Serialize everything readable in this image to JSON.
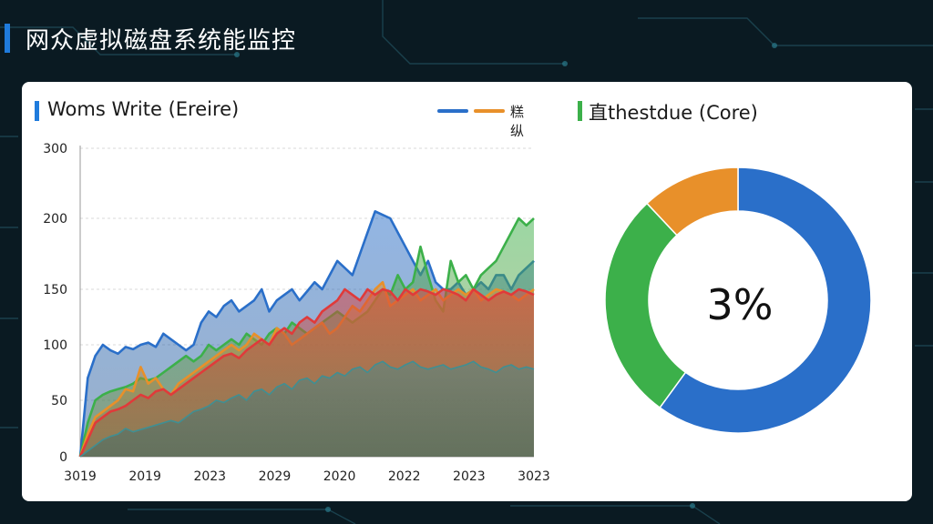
{
  "header": {
    "title": "网众虚拟磁盘系统能监控"
  },
  "panels": {
    "line": {
      "title": "Woms Write (Ereire)",
      "legend_label": "糕纵"
    },
    "donut": {
      "title": "直thestdue (Core)",
      "center_label": "3%"
    }
  },
  "colors": {
    "accent": "#1f7bdc",
    "blue": "#2a6fc9",
    "orange": "#e8902a",
    "green": "#3cb04a",
    "red": "#e03a3a",
    "teal": "#3f8f93"
  },
  "chart_data": [
    {
      "type": "area",
      "title": "Woms Write (Ereire)",
      "xlabel": "",
      "ylabel": "",
      "ylim": [
        0,
        300
      ],
      "yticks": [
        0,
        50,
        100,
        150,
        200,
        300
      ],
      "xticks": [
        "3019",
        "2019",
        "2023",
        "2029",
        "2020",
        "2022",
        "2023",
        "3023"
      ],
      "grid": true,
      "legend_position": "top-right",
      "series": [
        {
          "color": "blue",
          "values": [
            0,
            70,
            90,
            100,
            95,
            92,
            98,
            96,
            100,
            102,
            98,
            110,
            105,
            100,
            95,
            100,
            120,
            130,
            125,
            135,
            140,
            130,
            135,
            140,
            150,
            130,
            140,
            145,
            150,
            140,
            148,
            155,
            150,
            160,
            170,
            165,
            160,
            175,
            190,
            210,
            205,
            200,
            190,
            180,
            170,
            160,
            170,
            155,
            150,
            150,
            155,
            145,
            150,
            155,
            150,
            160,
            160,
            150,
            160,
            165,
            170
          ]
        },
        {
          "color": "green",
          "values": [
            0,
            30,
            50,
            55,
            58,
            60,
            62,
            65,
            70,
            68,
            70,
            75,
            80,
            85,
            90,
            85,
            90,
            100,
            95,
            100,
            105,
            100,
            110,
            105,
            100,
            110,
            115,
            110,
            120,
            115,
            110,
            115,
            120,
            125,
            130,
            125,
            120,
            125,
            130,
            140,
            150,
            145,
            160,
            150,
            155,
            180,
            160,
            140,
            130,
            170,
            155,
            160,
            150,
            160,
            165,
            170,
            180,
            190,
            200,
            195,
            200
          ]
        },
        {
          "color": "orange",
          "values": [
            0,
            20,
            35,
            40,
            45,
            50,
            60,
            58,
            80,
            65,
            70,
            60,
            55,
            65,
            70,
            75,
            80,
            85,
            90,
            95,
            100,
            95,
            100,
            110,
            105,
            100,
            115,
            110,
            100,
            105,
            110,
            115,
            120,
            110,
            115,
            125,
            135,
            130,
            140,
            150,
            155,
            135,
            140,
            145,
            150,
            140,
            145,
            150,
            140,
            145,
            150,
            145,
            150,
            140,
            145,
            150,
            148,
            145,
            140,
            145,
            150
          ]
        },
        {
          "color": "red",
          "values": [
            0,
            15,
            30,
            35,
            40,
            42,
            45,
            50,
            55,
            52,
            58,
            60,
            55,
            60,
            65,
            70,
            75,
            80,
            85,
            90,
            92,
            88,
            95,
            100,
            105,
            100,
            110,
            115,
            110,
            120,
            125,
            120,
            130,
            135,
            140,
            150,
            145,
            140,
            150,
            145,
            150,
            148,
            140,
            150,
            145,
            150,
            148,
            145,
            150,
            148,
            145,
            140,
            150,
            145,
            140,
            145,
            148,
            145,
            150,
            148,
            145
          ]
        },
        {
          "color": "teal",
          "values": [
            0,
            5,
            10,
            15,
            18,
            20,
            25,
            22,
            24,
            26,
            28,
            30,
            32,
            30,
            35,
            40,
            42,
            45,
            50,
            48,
            52,
            55,
            50,
            58,
            60,
            55,
            62,
            65,
            60,
            68,
            70,
            65,
            72,
            70,
            75,
            72,
            78,
            80,
            75,
            82,
            85,
            80,
            78,
            82,
            85,
            80,
            78,
            80,
            82,
            78,
            80,
            82,
            85,
            80,
            78,
            75,
            80,
            82,
            78,
            80,
            78
          ]
        }
      ]
    },
    {
      "type": "pie",
      "title": "直thestdue (Core)",
      "center_label": "3%",
      "slices": [
        {
          "color": "blue",
          "value": 60
        },
        {
          "color": "green",
          "value": 28
        },
        {
          "color": "orange",
          "value": 12
        }
      ]
    }
  ]
}
